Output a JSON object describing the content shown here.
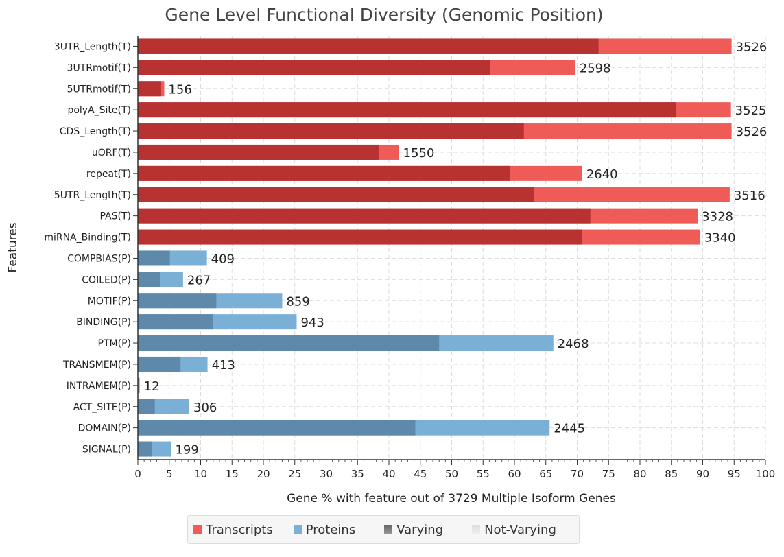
{
  "chart_data": {
    "type": "bar",
    "orientation": "horizontal",
    "stacked": true,
    "title": "Gene Level Functional Diversity (Genomic Position)",
    "xlabel": "Gene % with feature out of 3729 Multiple Isoform Genes",
    "ylabel": "Features",
    "xlim": [
      0,
      100
    ],
    "xticks": [
      0,
      5,
      10,
      15,
      20,
      25,
      30,
      35,
      40,
      45,
      50,
      55,
      60,
      65,
      70,
      75,
      80,
      85,
      90,
      95,
      100
    ],
    "grid": true,
    "legend_position": "bottom",
    "categories": [
      "3UTR_Length(T)",
      "3UTRmotif(T)",
      "5UTRmotif(T)",
      "polyA_Site(T)",
      "CDS_Length(T)",
      "uORF(T)",
      "repeat(T)",
      "5UTR_Length(T)",
      "PAS(T)",
      "miRNA_Binding(T)",
      "COMPBIAS(P)",
      "COILED(P)",
      "MOTIF(P)",
      "BINDING(P)",
      "PTM(P)",
      "TRANSMEM(P)",
      "INTRAMEM(P)",
      "ACT_SITE(P)",
      "DOMAIN(P)",
      "SIGNAL(P)"
    ],
    "group": [
      "T",
      "T",
      "T",
      "T",
      "T",
      "T",
      "T",
      "T",
      "T",
      "T",
      "P",
      "P",
      "P",
      "P",
      "P",
      "P",
      "P",
      "P",
      "P",
      "P"
    ],
    "counts": [
      3526,
      2598,
      156,
      3525,
      3526,
      1550,
      2640,
      3516,
      3328,
      3340,
      409,
      267,
      859,
      943,
      2468,
      413,
      12,
      306,
      2445,
      199
    ],
    "total_percent": [
      94.6,
      69.7,
      4.2,
      94.5,
      94.6,
      41.6,
      70.8,
      94.3,
      89.2,
      89.6,
      11.0,
      7.2,
      23.0,
      25.3,
      66.2,
      11.1,
      0.3,
      8.2,
      65.6,
      5.3
    ],
    "varying_percent": [
      73.4,
      56.1,
      3.6,
      85.8,
      61.5,
      38.4,
      59.3,
      63.1,
      72.1,
      70.8,
      5.1,
      3.5,
      12.5,
      12.0,
      48.0,
      6.8,
      0.1,
      2.7,
      44.2,
      2.2
    ],
    "legend": [
      {
        "label": "Transcripts",
        "color": "#ef5b57"
      },
      {
        "label": "Proteins",
        "color": "#7aafd6"
      },
      {
        "label": "Varying",
        "color": "#777777"
      },
      {
        "label": "Not-Varying",
        "color": "#dddddd"
      }
    ],
    "colors": {
      "T_varying": "#b83232",
      "T_not_varying": "#ef5b57",
      "P_varying": "#5f89ab",
      "P_not_varying": "#7aafd6"
    }
  }
}
